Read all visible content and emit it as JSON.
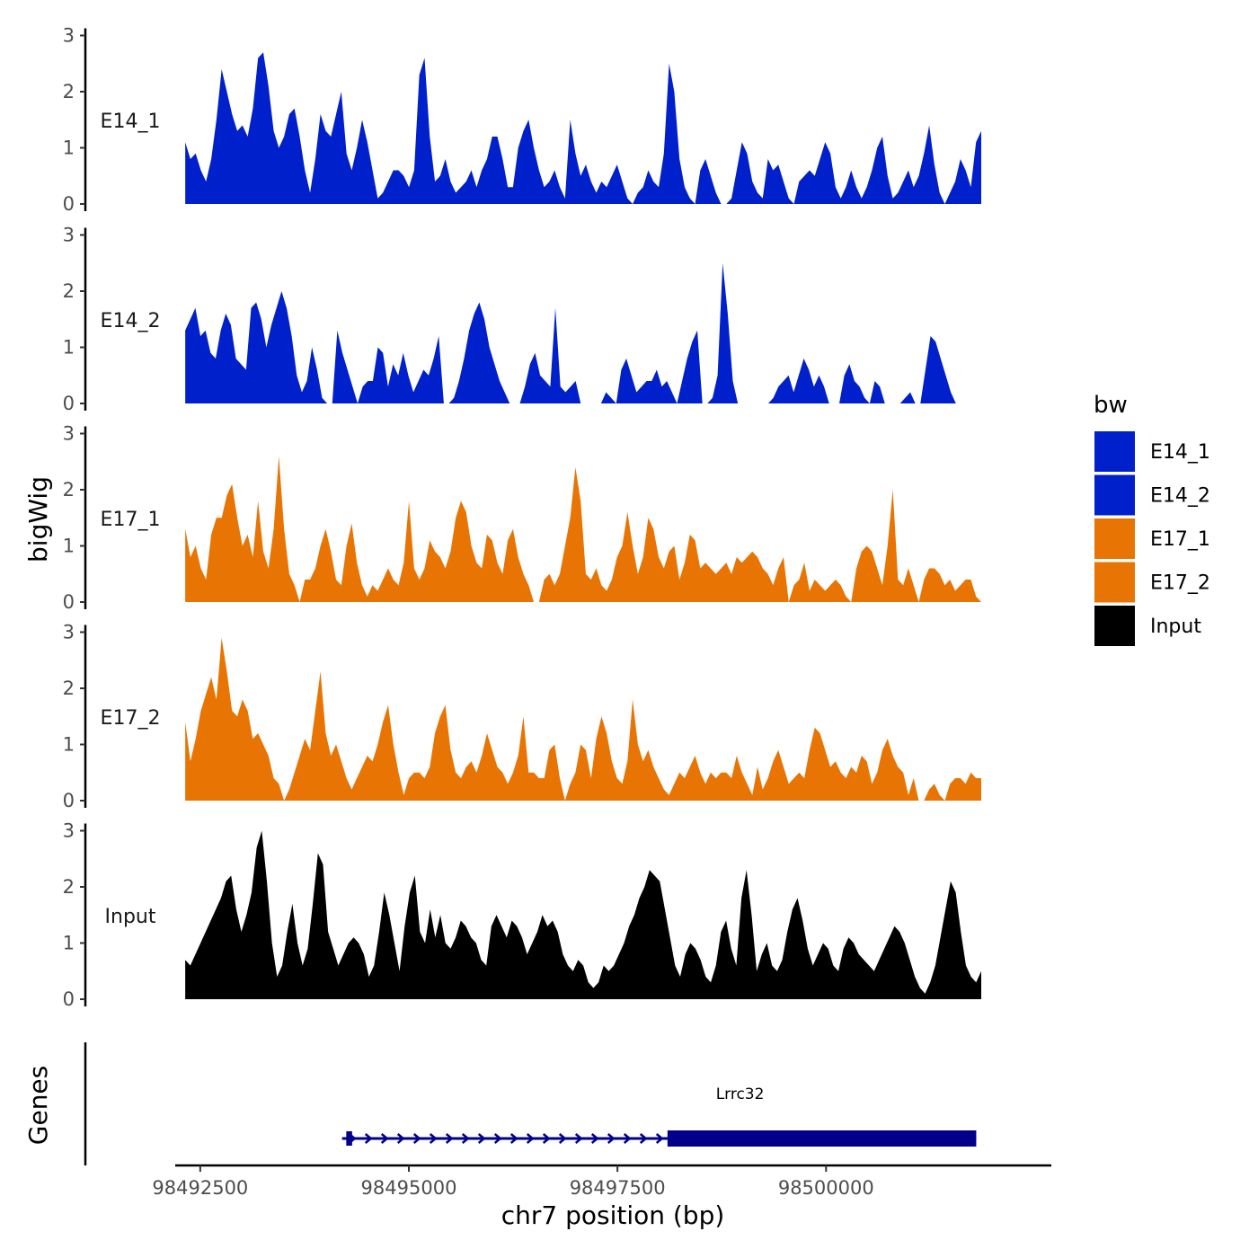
{
  "chart_data": {
    "type": "area",
    "y_axis_title": "bigWig",
    "x_axis_title": "chr7 position (bp)",
    "gene_panel_title": "Genes",
    "x_ticks": [
      98492500,
      98495000,
      98497500,
      98500000
    ],
    "x_tick_labels": [
      "98492500",
      "98495000",
      "98497500",
      "98500000"
    ],
    "xlim": [
      98492200,
      98502700
    ],
    "data_range": [
      98492320,
      98501860
    ],
    "y_ticks": [
      0,
      1,
      2,
      3
    ],
    "y_tick_labels": [
      "0",
      "1",
      "2",
      "3"
    ],
    "ylim": [
      0,
      3
    ],
    "legend": {
      "title": "bw",
      "placement": "right",
      "entries": [
        {
          "label": "E14_1",
          "color": "#0020CC"
        },
        {
          "label": "E14_2",
          "color": "#0020CC"
        },
        {
          "label": "E17_1",
          "color": "#E87503"
        },
        {
          "label": "E17_2",
          "color": "#E87503"
        },
        {
          "label": "Input",
          "color": "#000000"
        }
      ]
    },
    "series": [
      {
        "name": "E14_1",
        "color": "#0020CC",
        "values": [
          1.1,
          0.8,
          0.9,
          0.6,
          0.4,
          0.8,
          1.5,
          2.4,
          2.0,
          1.6,
          1.3,
          1.4,
          1.2,
          1.7,
          2.6,
          2.7,
          2.1,
          1.3,
          1.0,
          1.2,
          1.6,
          1.7,
          1.2,
          0.6,
          0.2,
          0.8,
          1.6,
          1.3,
          1.2,
          1.6,
          2.0,
          0.9,
          0.6,
          1.0,
          1.5,
          1.1,
          0.6,
          0.1,
          0.2,
          0.4,
          0.6,
          0.6,
          0.5,
          0.3,
          0.6,
          2.3,
          2.6,
          1.2,
          0.4,
          0.5,
          0.8,
          0.4,
          0.2,
          0.3,
          0.4,
          0.6,
          0.3,
          0.6,
          0.8,
          1.2,
          1.2,
          0.8,
          0.3,
          0.3,
          1.0,
          1.3,
          1.5,
          1.0,
          0.6,
          0.3,
          0.4,
          0.6,
          0.3,
          0.1,
          1.5,
          0.9,
          0.5,
          0.7,
          0.4,
          0.2,
          0.4,
          0.3,
          0.5,
          0.7,
          0.4,
          0.1,
          0.0,
          0.2,
          0.3,
          0.6,
          0.4,
          0.3,
          0.9,
          2.5,
          2.0,
          0.8,
          0.3,
          0.1,
          0.0,
          0.6,
          0.8,
          0.5,
          0.2,
          0.0,
          0.0,
          0.1,
          0.6,
          1.1,
          0.9,
          0.4,
          0.2,
          0.1,
          0.8,
          0.6,
          0.7,
          0.4,
          0.1,
          0.0,
          0.4,
          0.5,
          0.6,
          0.5,
          0.8,
          1.1,
          0.9,
          0.3,
          0.1,
          0.3,
          0.6,
          0.3,
          0.1,
          0.3,
          0.6,
          1.0,
          1.2,
          0.5,
          0.1,
          0.2,
          0.4,
          0.6,
          0.3,
          0.5,
          0.9,
          1.4,
          0.7,
          0.2,
          0.0,
          0.2,
          0.4,
          0.8,
          0.6,
          0.3,
          1.1,
          1.3
        ]
      },
      {
        "name": "E14_2",
        "color": "#0020CC",
        "values": [
          1.3,
          1.5,
          1.7,
          1.2,
          1.3,
          0.9,
          0.8,
          1.3,
          1.6,
          1.4,
          0.8,
          0.7,
          0.6,
          1.7,
          1.8,
          1.5,
          1.0,
          1.4,
          1.7,
          2.0,
          1.7,
          1.2,
          0.5,
          0.2,
          0.4,
          1.0,
          0.6,
          0.1,
          0.0,
          0.0,
          1.3,
          0.9,
          0.6,
          0.3,
          0.0,
          0.3,
          0.4,
          0.4,
          1.0,
          0.9,
          0.3,
          0.7,
          0.5,
          0.9,
          0.5,
          0.2,
          0.4,
          0.6,
          0.5,
          0.8,
          1.2,
          0.0,
          0.0,
          0.1,
          0.4,
          0.8,
          1.3,
          1.6,
          1.8,
          1.5,
          1.0,
          0.7,
          0.4,
          0.2,
          0.0,
          0.0,
          0.0,
          0.3,
          0.7,
          0.9,
          0.5,
          0.4,
          0.3,
          1.7,
          0.3,
          0.2,
          0.3,
          0.4,
          0.0,
          0.0,
          0.0,
          0.0,
          0.0,
          0.2,
          0.1,
          0.0,
          0.6,
          0.8,
          0.5,
          0.2,
          0.3,
          0.4,
          0.4,
          0.6,
          0.3,
          0.4,
          0.2,
          0.0,
          0.4,
          0.8,
          1.1,
          1.3,
          0.0,
          0.0,
          0.1,
          0.5,
          2.5,
          1.6,
          0.4,
          0.0,
          0.0,
          0.0,
          0.0,
          0.0,
          0.0,
          0.0,
          0.1,
          0.3,
          0.4,
          0.5,
          0.2,
          0.5,
          0.8,
          0.6,
          0.3,
          0.5,
          0.3,
          0.0,
          0.0,
          0.0,
          0.5,
          0.7,
          0.4,
          0.3,
          0.1,
          0.0,
          0.4,
          0.3,
          0.0,
          0.0,
          0.0,
          0.0,
          0.1,
          0.2,
          0.0,
          0.0,
          0.6,
          1.2,
          1.1,
          0.8,
          0.5,
          0.2,
          0.0,
          0.0,
          0.0,
          0.0,
          0.0,
          0.0
        ]
      },
      {
        "name": "E17_1",
        "color": "#E87503",
        "values": [
          1.3,
          0.8,
          1.0,
          0.6,
          0.4,
          1.2,
          1.5,
          1.5,
          1.9,
          2.1,
          1.5,
          1.0,
          1.2,
          0.8,
          1.8,
          0.9,
          0.6,
          1.3,
          2.6,
          1.3,
          0.5,
          0.3,
          0.0,
          0.4,
          0.4,
          0.6,
          1.0,
          1.3,
          0.9,
          0.4,
          0.3,
          1.0,
          1.4,
          0.7,
          0.3,
          0.1,
          0.3,
          0.2,
          0.4,
          0.6,
          0.4,
          0.3,
          0.7,
          1.8,
          0.6,
          0.4,
          0.6,
          1.1,
          0.9,
          0.8,
          0.6,
          0.9,
          1.5,
          1.8,
          1.6,
          1.0,
          0.7,
          0.6,
          1.2,
          1.1,
          0.7,
          0.5,
          1.1,
          1.3,
          0.8,
          0.5,
          0.3,
          0.0,
          0.0,
          0.4,
          0.5,
          0.3,
          0.5,
          1.0,
          1.5,
          2.4,
          1.8,
          0.5,
          0.4,
          0.6,
          0.3,
          0.2,
          0.4,
          0.8,
          1.0,
          1.6,
          1.0,
          0.5,
          0.8,
          1.5,
          1.3,
          0.8,
          0.6,
          0.9,
          1.0,
          0.4,
          0.7,
          1.2,
          1.1,
          0.6,
          0.7,
          0.6,
          0.5,
          0.6,
          0.7,
          0.5,
          0.8,
          0.7,
          0.8,
          0.9,
          0.8,
          0.6,
          0.5,
          0.3,
          0.6,
          0.8,
          0.0,
          0.3,
          0.4,
          0.7,
          0.2,
          0.4,
          0.3,
          0.2,
          0.3,
          0.4,
          0.3,
          0.1,
          0.0,
          0.6,
          0.9,
          1.0,
          0.9,
          0.6,
          0.3,
          1.0,
          2.0,
          0.4,
          0.3,
          0.6,
          0.3,
          0.0,
          0.4,
          0.6,
          0.6,
          0.5,
          0.3,
          0.4,
          0.2,
          0.3,
          0.4,
          0.4,
          0.1,
          0.0
        ]
      },
      {
        "name": "E17_2",
        "color": "#E87503",
        "values": [
          1.4,
          0.7,
          1.1,
          1.6,
          1.9,
          2.2,
          1.8,
          2.9,
          2.3,
          1.6,
          1.5,
          1.8,
          1.6,
          1.1,
          1.2,
          1.0,
          0.8,
          0.4,
          0.3,
          0.0,
          0.2,
          0.5,
          0.8,
          1.1,
          0.9,
          1.6,
          2.3,
          1.2,
          0.8,
          1.0,
          0.7,
          0.4,
          0.2,
          0.4,
          0.6,
          0.8,
          0.7,
          1.0,
          1.4,
          1.7,
          1.0,
          0.5,
          0.1,
          0.4,
          0.5,
          0.5,
          0.4,
          0.6,
          1.2,
          1.5,
          1.7,
          0.9,
          0.5,
          0.4,
          0.6,
          0.7,
          0.5,
          0.8,
          1.2,
          0.9,
          0.6,
          0.5,
          0.3,
          0.5,
          0.8,
          1.5,
          0.5,
          0.5,
          0.4,
          0.4,
          0.9,
          1.0,
          0.4,
          0.0,
          0.3,
          0.5,
          1.0,
          0.9,
          0.4,
          1.1,
          1.5,
          1.2,
          0.7,
          0.4,
          0.3,
          0.7,
          1.8,
          1.0,
          0.7,
          0.9,
          0.6,
          0.4,
          0.2,
          0.1,
          0.3,
          0.5,
          0.4,
          0.6,
          0.8,
          0.5,
          0.3,
          0.5,
          0.4,
          0.5,
          0.5,
          0.4,
          0.8,
          0.5,
          0.3,
          0.1,
          0.6,
          0.2,
          0.4,
          0.7,
          0.9,
          0.6,
          0.3,
          0.4,
          0.5,
          0.4,
          0.9,
          1.3,
          1.2,
          0.9,
          0.6,
          0.7,
          0.5,
          0.4,
          0.6,
          0.5,
          0.8,
          0.7,
          0.3,
          0.5,
          0.9,
          1.1,
          0.8,
          0.6,
          0.5,
          0.1,
          0.4,
          0.0,
          0.0,
          0.2,
          0.3,
          0.1,
          0.0,
          0.3,
          0.4,
          0.4,
          0.3,
          0.5,
          0.4,
          0.4
        ]
      },
      {
        "name": "Input",
        "color": "#000000",
        "values": [
          0.7,
          0.6,
          0.8,
          1.0,
          1.2,
          1.4,
          1.6,
          1.8,
          2.1,
          2.2,
          1.6,
          1.2,
          1.5,
          1.9,
          2.7,
          3.0,
          2.1,
          1.0,
          0.4,
          0.6,
          1.2,
          1.7,
          1.0,
          0.6,
          0.9,
          1.7,
          2.6,
          2.4,
          1.2,
          0.9,
          0.6,
          0.8,
          1.0,
          1.1,
          1.0,
          0.8,
          0.4,
          0.6,
          1.2,
          1.9,
          1.5,
          1.0,
          0.5,
          1.3,
          1.9,
          2.2,
          1.2,
          1.0,
          1.6,
          1.1,
          1.5,
          1.0,
          0.9,
          1.1,
          1.4,
          1.3,
          1.1,
          1.0,
          0.7,
          0.6,
          1.3,
          1.5,
          1.3,
          1.1,
          1.4,
          1.3,
          1.1,
          0.8,
          1.0,
          1.2,
          1.5,
          1.3,
          1.4,
          1.2,
          0.8,
          0.6,
          0.5,
          0.7,
          0.6,
          0.3,
          0.2,
          0.3,
          0.6,
          0.5,
          0.6,
          0.8,
          1.0,
          1.3,
          1.5,
          1.8,
          2.0,
          2.3,
          2.2,
          2.1,
          1.6,
          1.1,
          0.6,
          0.4,
          0.8,
          1.0,
          0.9,
          0.7,
          0.4,
          0.3,
          0.6,
          1.2,
          1.4,
          0.9,
          0.6,
          1.8,
          2.3,
          1.5,
          0.5,
          0.8,
          1.0,
          0.6,
          0.5,
          0.7,
          1.2,
          1.6,
          1.8,
          1.4,
          0.9,
          0.6,
          0.8,
          1.0,
          0.9,
          0.6,
          0.5,
          0.9,
          1.1,
          1.0,
          0.8,
          0.7,
          0.6,
          0.5,
          0.7,
          0.9,
          1.1,
          1.3,
          1.2,
          1.0,
          0.7,
          0.4,
          0.2,
          0.1,
          0.3,
          0.6,
          1.1,
          1.6,
          2.1,
          1.9,
          1.2,
          0.6,
          0.4,
          0.3,
          0.5
        ]
      }
    ],
    "genes": [
      {
        "name": "Lrrc32",
        "strand": "+",
        "start": 98494200,
        "end": 98501800,
        "utr_start": 98494250,
        "utr_end": 98494320,
        "cds_start": 98498100,
        "cds_end": 98501800
      }
    ]
  }
}
